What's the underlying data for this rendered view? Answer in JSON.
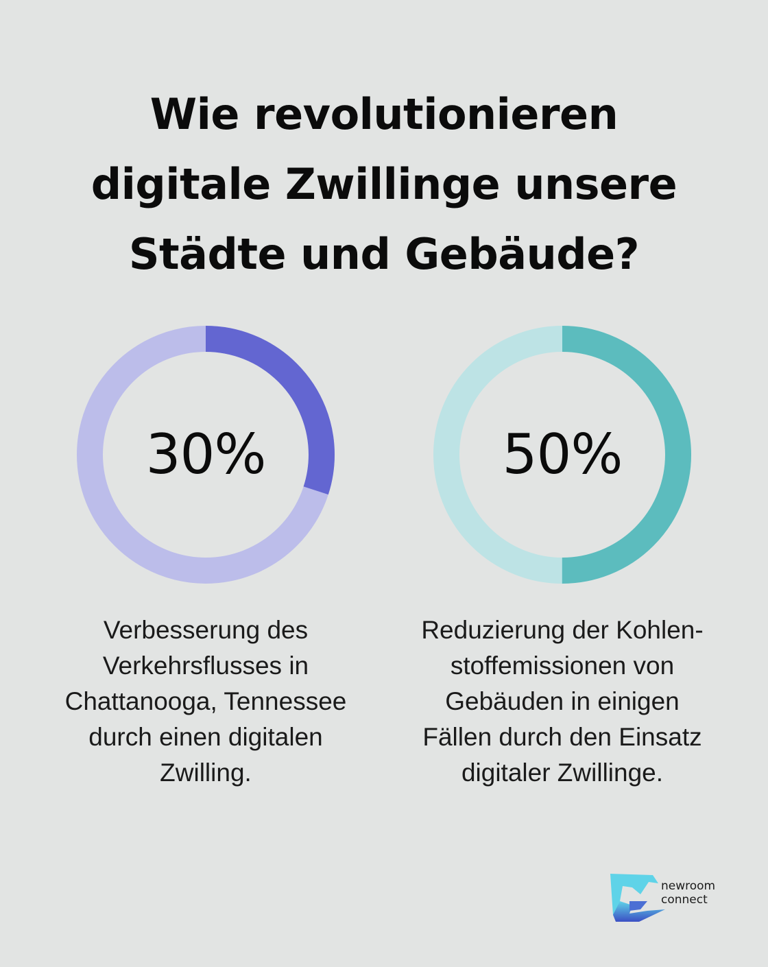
{
  "title_lines": [
    "Wie revolutionieren",
    "digitale Zwillinge unsere",
    "Städte und Gebäude?"
  ],
  "chart_data": [
    {
      "type": "pie",
      "variant": "donut",
      "value": 30,
      "max": 100,
      "label": "30%",
      "colors": {
        "filled": "#6366d1",
        "track": "#bcbdea"
      },
      "description_lines": [
        "Verbesserung des",
        "Verkehrsflusses in",
        "Chattanooga, Tennessee",
        "durch einen digitalen",
        "Zwilling."
      ]
    },
    {
      "type": "pie",
      "variant": "donut",
      "value": 50,
      "max": 100,
      "label": "50%",
      "colors": {
        "filled": "#5cbcbe",
        "track": "#bde3e5"
      },
      "description_lines": [
        "Reduzierung der Kohlen-",
        "stoffemissionen von",
        "Gebäuden in einigen",
        "Fällen durch den Einsatz",
        "digitaler Zwillinge."
      ]
    }
  ],
  "logo": {
    "lines": [
      "newroom",
      "connect"
    ],
    "icon": "newroom-connect-logo-icon",
    "colors": {
      "light": "#5fd3e8",
      "dark": "#3b4fc4"
    }
  },
  "background": "#e2e4e3"
}
